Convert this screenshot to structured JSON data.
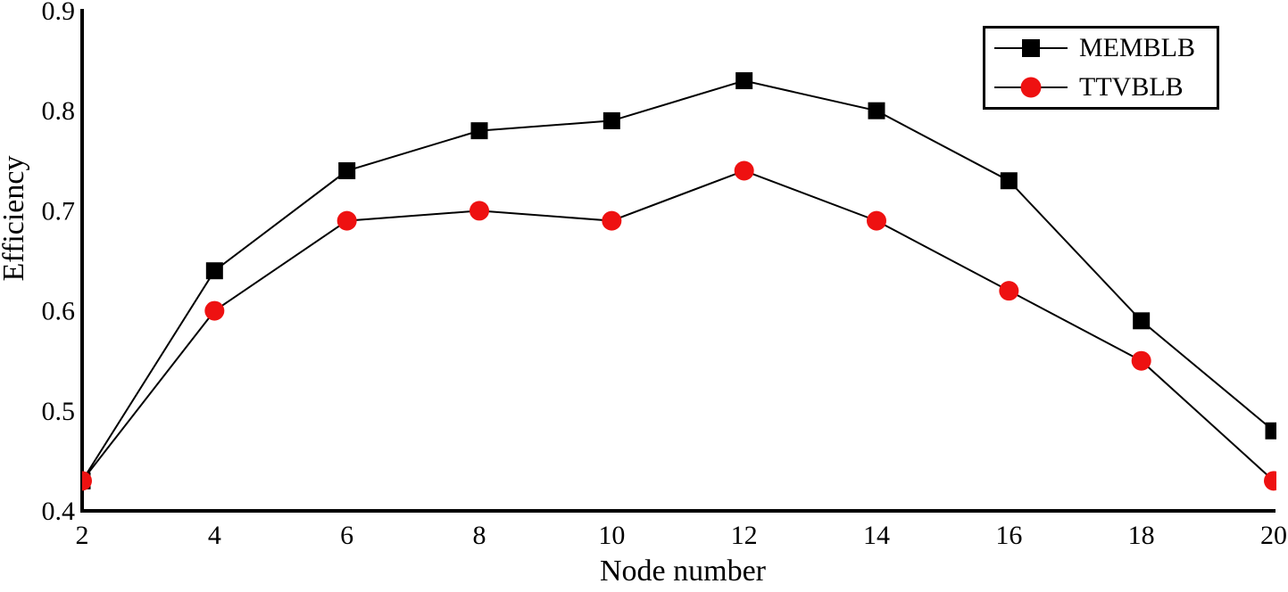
{
  "figure": {
    "background_color": "#ffffff",
    "axis_color": "#000000",
    "line_color": "#000000"
  },
  "chart_data": {
    "type": "line",
    "title": "",
    "xlabel": "Node number",
    "ylabel": "Efficiency",
    "x": [
      2,
      4,
      6,
      8,
      10,
      12,
      14,
      16,
      18,
      20
    ],
    "x_tick_labels": [
      "2",
      "4",
      "6",
      "8",
      "10",
      "12",
      "14",
      "16",
      "18",
      "20"
    ],
    "y_tick_labels": [
      "0.4",
      "0.5",
      "0.6",
      "0.7",
      "0.8",
      "0.9"
    ],
    "xlim": [
      2,
      20
    ],
    "ylim": [
      0.4,
      0.9
    ],
    "grid": false,
    "legend_position": "top-right",
    "series": [
      {
        "name": "MEMBLB",
        "marker": "square",
        "marker_color": "#000000",
        "line_color": "#000000",
        "values": [
          0.43,
          0.64,
          0.74,
          0.78,
          0.79,
          0.83,
          0.8,
          0.73,
          0.59,
          0.48
        ]
      },
      {
        "name": "TTVBLB",
        "marker": "circle",
        "marker_color": "#ee1111",
        "line_color": "#000000",
        "values": [
          0.43,
          0.6,
          0.69,
          0.7,
          0.69,
          0.74,
          0.69,
          0.62,
          0.55,
          0.43
        ]
      }
    ]
  }
}
